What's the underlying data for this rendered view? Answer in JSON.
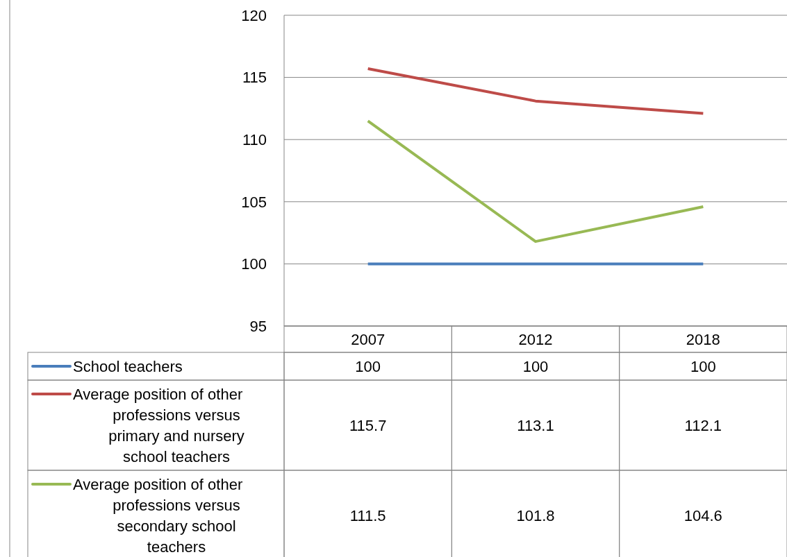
{
  "chart_data": {
    "type": "line",
    "categories": [
      "2007",
      "2012",
      "2018"
    ],
    "series": [
      {
        "name": "School teachers",
        "color": "#4a7ebb",
        "values": [
          100,
          100,
          100
        ]
      },
      {
        "name": "Average position of other professions versus primary and nursery school teachers",
        "color": "#be4b48",
        "values": [
          115.7,
          113.1,
          112.1
        ]
      },
      {
        "name": "Average position of other professions versus secondary school teachers",
        "color": "#98b954",
        "values": [
          111.5,
          101.8,
          104.6
        ]
      }
    ],
    "ylim": [
      95,
      120
    ],
    "yticks": [
      95,
      100,
      105,
      110,
      115,
      120
    ],
    "grid": "y",
    "legend": "bottom",
    "data_labels": true,
    "marker": "none"
  }
}
